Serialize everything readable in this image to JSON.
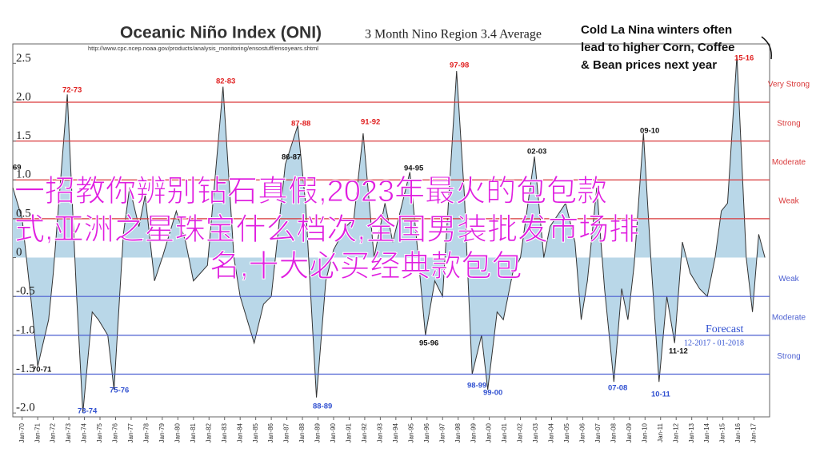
{
  "chart_data": {
    "type": "area",
    "title": "Oceanic Niño Index (ONI)",
    "subtitle": "3 Month Nino Region 3.4 Average",
    "source": "http://www.cpc.ncep.noaa.gov/products/analysis_monitoring/ensostuff/ensoyears.shtml",
    "callout": [
      "Cold La Nina winters often",
      "lead to higher Corn, Coffee",
      "& Bean prices next year"
    ],
    "forecast": "Forecast",
    "forecast_period": "12-2017 - 01-2018",
    "overlay": [
      "一招教你辨别钻石真假,2023年最火的包包款",
      "式,亚洲之星珠宝什么档次,全国男装批发市场排",
      "名,十大必买经典款包包"
    ],
    "color": "#b9d7e8",
    "line_color": "#333333",
    "x": [
      1969.4,
      1970.0,
      1970.6,
      1971.0,
      1971.7,
      1972.0,
      1972.9,
      1973.5,
      1973.9,
      1974.5,
      1974.9,
      1975.5,
      1975.9,
      1976.5,
      1976.9,
      1977.5,
      1977.9,
      1978.5,
      1979.0,
      1979.9,
      1980.5,
      1981.0,
      1981.9,
      1982.9,
      1983.6,
      1984.0,
      1984.9,
      1985.5,
      1986.0,
      1986.9,
      1987.7,
      1988.2,
      1988.9,
      1989.5,
      1990.0,
      1990.8,
      1991.3,
      1991.9,
      1992.6,
      1993.3,
      1993.8,
      1994.9,
      1995.3,
      1995.9,
      1996.5,
      1997.0,
      1997.9,
      1998.4,
      1998.9,
      1999.5,
      1999.9,
      2000.5,
      2000.9,
      2001.5,
      2002.0,
      2002.9,
      2003.5,
      2003.9,
      2004.9,
      2005.5,
      2005.9,
      2006.3,
      2006.9,
      2007.4,
      2008.0,
      2008.5,
      2008.9,
      2009.3,
      2009.9,
      2010.4,
      2010.9,
      2011.4,
      2011.9,
      2012.4,
      2012.9,
      2013.5,
      2014.0,
      2014.5,
      2014.9,
      2015.3,
      2015.9,
      2016.5,
      2016.9,
      2017.3,
      2017.7
    ],
    "values": [
      0.9,
      0.5,
      -0.6,
      -1.4,
      -0.8,
      -0.2,
      2.1,
      -0.5,
      -2.0,
      -0.7,
      -0.8,
      -1.0,
      -1.7,
      0.3,
      0.9,
      0.4,
      0.8,
      -0.3,
      0.0,
      0.6,
      0.2,
      -0.3,
      -0.1,
      2.2,
      0.0,
      -0.5,
      -1.1,
      -0.6,
      -0.5,
      1.2,
      1.7,
      0.7,
      -1.8,
      -0.3,
      0.1,
      0.4,
      0.5,
      1.6,
      0.0,
      0.7,
      0.2,
      1.1,
      0.3,
      -1.0,
      -0.3,
      -0.5,
      2.4,
      0.8,
      -1.5,
      -1.0,
      -1.7,
      -0.7,
      -0.8,
      -0.2,
      0.0,
      1.3,
      0.0,
      0.4,
      0.7,
      0.2,
      -0.8,
      -0.3,
      0.9,
      -0.4,
      -1.6,
      -0.4,
      -0.8,
      -0.1,
      1.6,
      -0.1,
      -1.6,
      -0.5,
      -1.1,
      0.2,
      -0.2,
      -0.4,
      -0.5,
      0.0,
      0.6,
      0.7,
      2.6,
      0.0,
      -0.7,
      0.3,
      0.0
    ],
    "xlim": [
      1969.4,
      2018.0
    ],
    "ylim": [
      -2.05,
      2.75
    ],
    "yticks": [
      {
        "value": 2.5,
        "label": "2.5"
      },
      {
        "value": 2.0,
        "label": "2.0"
      },
      {
        "value": 1.5,
        "label": "1.5"
      },
      {
        "value": 1.0,
        "label": "1.0"
      },
      {
        "value": 0.5,
        "label": "0.5"
      },
      0,
      {
        "value": -0.5,
        "label": "-0.5"
      },
      {
        "value": -1.0,
        "label": "-1.0"
      },
      {
        "value": -1.5,
        "label": "-1.5"
      },
      {
        "value": -2.0,
        "label": "-2.0"
      }
    ],
    "xticks": [
      {
        "value": 1970,
        "label": "Jan-70"
      },
      {
        "value": 1971,
        "label": "Jan-71"
      },
      {
        "value": 1972,
        "label": "Jan-72"
      },
      {
        "value": 1973,
        "label": "Jan-73"
      },
      {
        "value": 1974,
        "label": "Jan-74"
      },
      {
        "value": 1975,
        "label": "Jan-75"
      },
      {
        "value": 1976,
        "label": "Jan-76"
      },
      {
        "value": 1977,
        "label": "Jan-77"
      },
      {
        "value": 1978,
        "label": "Jan-78"
      },
      {
        "value": 1979,
        "label": "Jan-79"
      },
      {
        "value": 1980,
        "label": "Jan-80"
      },
      {
        "value": 1981,
        "label": "Jan-81"
      },
      {
        "value": 1982,
        "label": "Jan-82"
      },
      {
        "value": 1983,
        "label": "Jan-83"
      },
      {
        "value": 1984,
        "label": "Jan-84"
      },
      {
        "value": 1985,
        "label": "Jan-85"
      },
      {
        "value": 1986,
        "label": "Jan-86"
      },
      {
        "value": 1987,
        "label": "Jan-87"
      },
      {
        "value": 1988,
        "label": "Jan-88"
      },
      {
        "value": 1989,
        "label": "Jan-89"
      },
      {
        "value": 1990,
        "label": "Jan-90"
      },
      {
        "value": 1991,
        "label": "Jan-91"
      },
      {
        "value": 1992,
        "label": "Jan-92"
      },
      {
        "value": 1993,
        "label": "Jan-93"
      },
      {
        "value": 1994,
        "label": "Jan-94"
      },
      {
        "value": 1995,
        "label": "Jan-95"
      },
      {
        "value": 1996,
        "label": "Jan-96"
      },
      {
        "value": 1997,
        "label": "Jan-97"
      },
      {
        "value": 1998,
        "label": "Jan-98"
      },
      {
        "value": 1999,
        "label": "Jan-99"
      },
      {
        "value": 2000,
        "label": "Jan-00"
      },
      {
        "value": 2001,
        "label": "Jan-01"
      },
      {
        "value": 2002,
        "label": "Jan-02"
      },
      {
        "value": 2003,
        "label": "Jan-03"
      },
      {
        "value": 2004,
        "label": "Jan-04"
      },
      {
        "value": 2005,
        "label": "Jan-05"
      },
      {
        "value": 2006,
        "label": "Jan-06"
      },
      {
        "value": 2007,
        "label": "Jan-07"
      },
      {
        "value": 2008,
        "label": "Jan-08"
      },
      {
        "value": 2009,
        "label": "Jan-09"
      },
      {
        "value": 2010,
        "label": "Jan-10"
      },
      {
        "value": 2011,
        "label": "Jan-11"
      },
      {
        "value": 2012,
        "label": "Jan-12"
      },
      {
        "value": 2013,
        "label": "Jan-13"
      },
      {
        "value": 2014,
        "label": "Jan-14"
      },
      {
        "value": 2015,
        "label": "Jan-15"
      },
      {
        "value": 2016,
        "label": "Jan-16"
      },
      {
        "value": 2017,
        "label": "Jan-17"
      }
    ],
    "bands": [
      {
        "label": "Very Strong",
        "value": 2.0,
        "color": "#d9393a"
      },
      {
        "label": "Strong",
        "value": 1.5,
        "color": "#d9393a"
      },
      {
        "label": "Moderate",
        "value": 1.0,
        "color": "#d9393a"
      },
      {
        "label": "Weak",
        "value": 0.5,
        "color": "#d9393a"
      },
      {
        "label": "Weak",
        "value": -0.5,
        "color": "#4b5fd1"
      },
      {
        "label": "Moderate",
        "value": -1.0,
        "color": "#4b5fd1"
      },
      {
        "label": "Strong",
        "value": -1.5,
        "color": "#4b5fd1"
      }
    ],
    "annotations": [
      {
        "text": "69",
        "color": "#111111"
      },
      {
        "text": "72-73",
        "color": "#e02020"
      },
      {
        "text": "82-83",
        "color": "#e02020"
      },
      {
        "text": "87-88",
        "color": "#e02020"
      },
      {
        "text": "91-92",
        "color": "#e02020"
      },
      {
        "text": "97-98",
        "color": "#e02020"
      },
      {
        "text": "15-16",
        "color": "#e02020"
      },
      {
        "text": "86-87",
        "color": "#111111"
      },
      {
        "text": "94-95",
        "color": "#111111"
      },
      {
        "text": "02-03",
        "color": "#111111"
      },
      {
        "text": "09-10",
        "color": "#111111"
      },
      {
        "text": "70-71",
        "color": "#111111"
      },
      {
        "text": "73-74",
        "color": "#3050d0"
      },
      {
        "text": "75-76",
        "color": "#3050d0"
      },
      {
        "text": "88-89",
        "color": "#3050d0"
      },
      {
        "text": "95-96",
        "color": "#111111"
      },
      {
        "text": "98-99",
        "color": "#3050d0"
      },
      {
        "text": "99-00",
        "color": "#3050d0"
      },
      {
        "text": "07-08",
        "color": "#3050d0"
      },
      {
        "text": "10-11",
        "color": "#3050d0"
      },
      {
        "text": "11-12",
        "color": "#111111"
      }
    ]
  }
}
